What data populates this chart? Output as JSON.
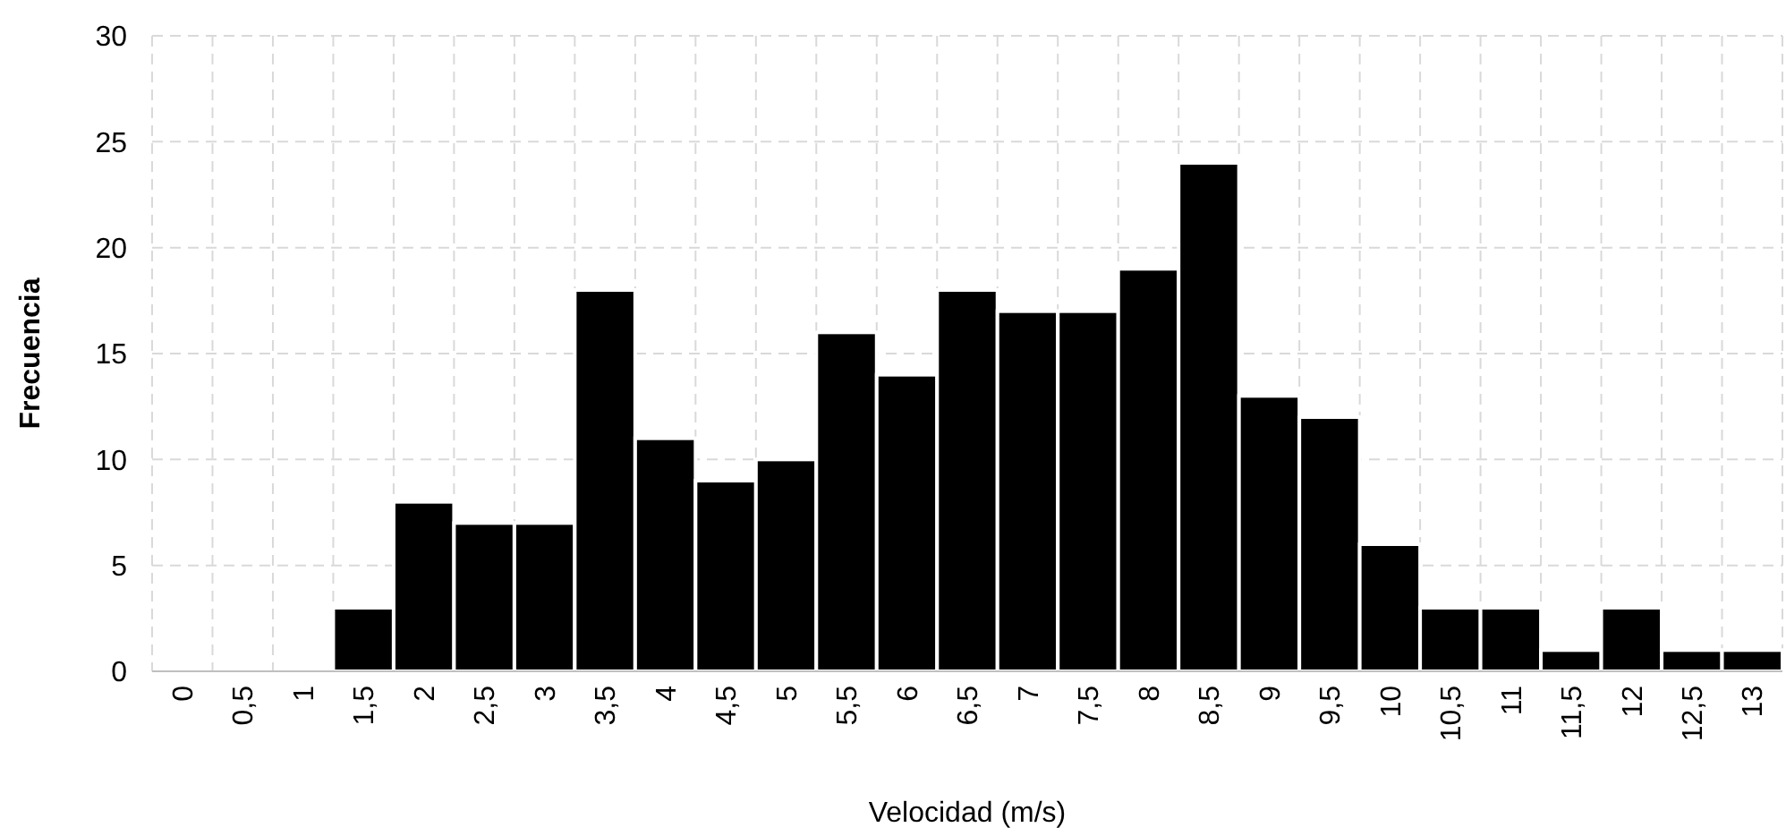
{
  "chart_data": {
    "type": "bar",
    "xlabel": "Velocidad (m/s)",
    "ylabel": "Frecuencia",
    "categories": [
      "0",
      "0,5",
      "1",
      "1,5",
      "2",
      "2,5",
      "3",
      "3,5",
      "4",
      "4,5",
      "5",
      "5,5",
      "6",
      "6,5",
      "7",
      "7,5",
      "8",
      "8,5",
      "9",
      "9,5",
      "10",
      "10,5",
      "11",
      "11,5",
      "12",
      "12,5",
      "13"
    ],
    "values": [
      0,
      0,
      0,
      3,
      8,
      7,
      7,
      18,
      11,
      9,
      10,
      16,
      14,
      18,
      17,
      17,
      19,
      24,
      13,
      12,
      6,
      3,
      3,
      1,
      3,
      1,
      1
    ],
    "color": "#000000",
    "ylim": [
      0,
      30
    ],
    "yticks": [
      0,
      5,
      10,
      15,
      20,
      25,
      30
    ],
    "grid": true
  }
}
